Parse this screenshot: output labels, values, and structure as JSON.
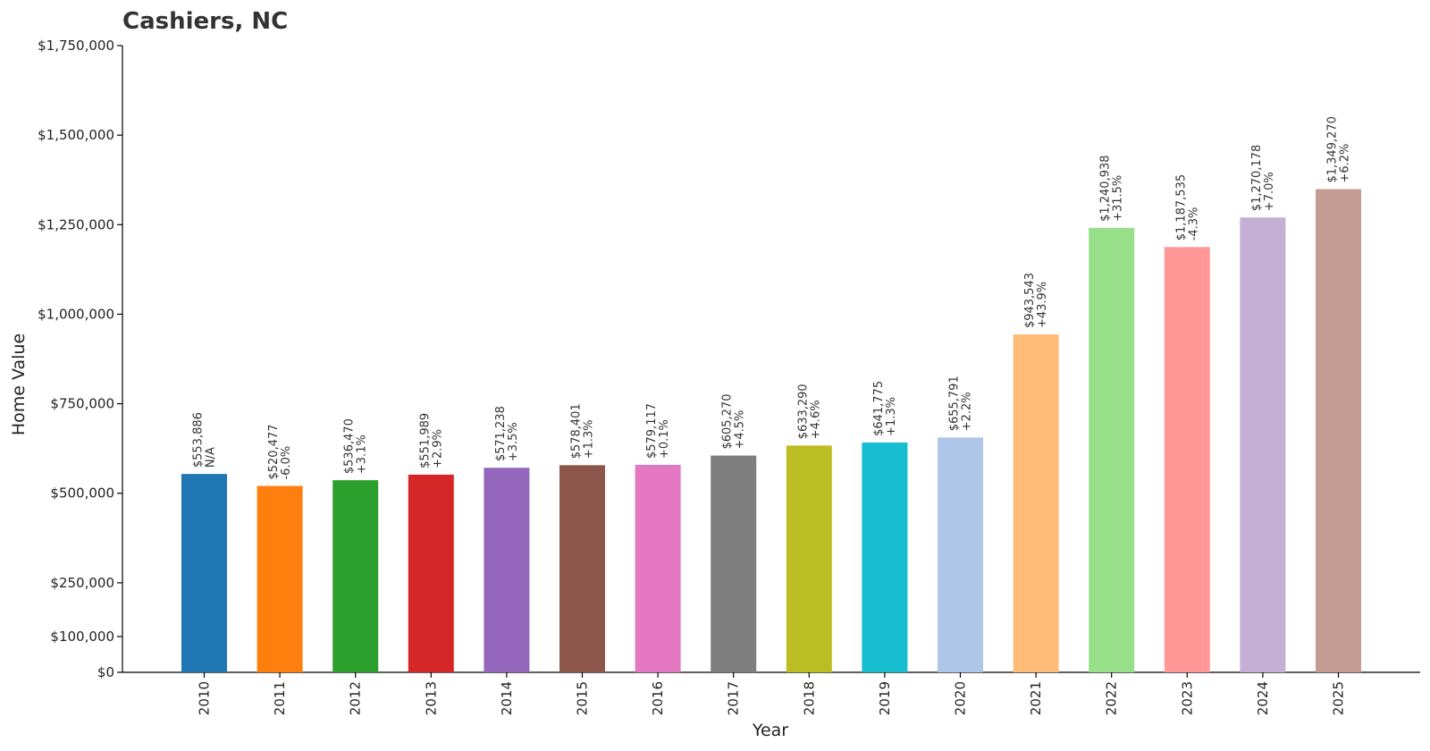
{
  "chart_data": {
    "type": "bar",
    "title": "Cashiers, NC",
    "xlabel": "Year",
    "ylabel": "Home Value",
    "ylim": [
      0,
      1750000
    ],
    "yticks": [
      0,
      100000,
      250000,
      500000,
      750000,
      1000000,
      1250000,
      1500000,
      1750000
    ],
    "ytick_labels": [
      "$0",
      "$100,000",
      "$250,000",
      "$500,000",
      "$750,000",
      "$1,000,000",
      "$1,250,000",
      "$1,500,000",
      "$1,750,000"
    ],
    "categories": [
      "2010",
      "2011",
      "2012",
      "2013",
      "2014",
      "2015",
      "2016",
      "2017",
      "2018",
      "2019",
      "2020",
      "2021",
      "2022",
      "2023",
      "2024",
      "2025"
    ],
    "values": [
      553886,
      520477,
      536470,
      551989,
      571238,
      578401,
      579117,
      605270,
      633290,
      641775,
      655791,
      943543,
      1240938,
      1187535,
      1270178,
      1349270
    ],
    "value_labels": [
      "$553,886",
      "$520,477",
      "$536,470",
      "$551,989",
      "$571,238",
      "$578,401",
      "$579,117",
      "$605,270",
      "$633,290",
      "$641,775",
      "$655,791",
      "$943,543",
      "$1,240,938",
      "$1,187,535",
      "$1,270,178",
      "$1,349,270"
    ],
    "change_labels": [
      "N/A",
      "-6.0%",
      "+3.1%",
      "+2.9%",
      "+3.5%",
      "+1.3%",
      "+0.1%",
      "+4.5%",
      "+4.6%",
      "+1.3%",
      "+2.2%",
      "+43.9%",
      "+31.5%",
      "-4.3%",
      "+7.0%",
      "+6.2%"
    ],
    "colors": [
      "#1f77b4",
      "#ff7f0e",
      "#2ca02c",
      "#d62728",
      "#9467bd",
      "#8c564b",
      "#e377c2",
      "#7f7f7f",
      "#bcbd22",
      "#17becf",
      "#aec7e8",
      "#ffbb78",
      "#98df8a",
      "#ff9896",
      "#c5b0d5",
      "#c49c94"
    ],
    "grid": false,
    "legend": "none"
  }
}
